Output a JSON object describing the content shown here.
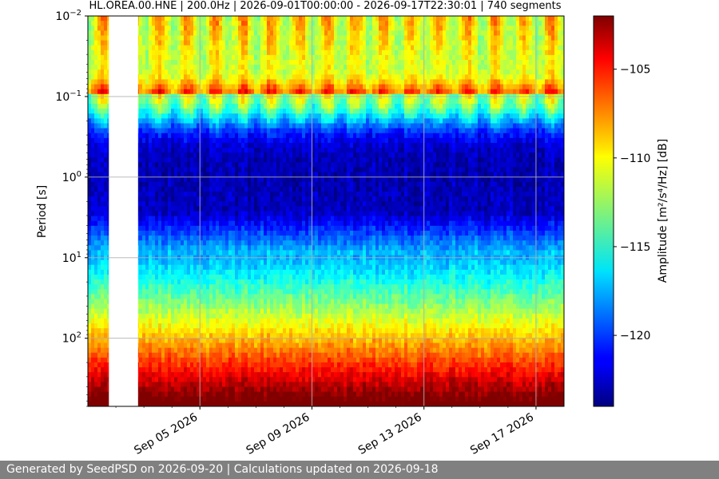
{
  "chart_data": {
    "type": "heatmap",
    "title": "HL.OREA.00.HNE | 200.0Hz | 2026-09-01T00:00:00 - 2026-09-17T22:30:01 | 740 segments",
    "ylabel": "Period [s]",
    "xlabel": "",
    "x_range": [
      "2026-09-01T00:00",
      "2026-09-18T00:00"
    ],
    "x_ticks": [
      {
        "date": "2026-09-05",
        "label": "Sep 05 2026"
      },
      {
        "date": "2026-09-09",
        "label": "Sep 09 2026"
      },
      {
        "date": "2026-09-13",
        "label": "Sep 13 2026"
      },
      {
        "date": "2026-09-17",
        "label": "Sep 17 2026"
      }
    ],
    "y_scale": "log",
    "y_inverted": true,
    "y_range": [
      0.01,
      700
    ],
    "y_ticks": [
      {
        "value": 0.01,
        "base": "10",
        "exp": "−2"
      },
      {
        "value": 0.1,
        "base": "10",
        "exp": "−1"
      },
      {
        "value": 1,
        "base": "10",
        "exp": "0"
      },
      {
        "value": 10,
        "base": "10",
        "exp": "1"
      },
      {
        "value": 100,
        "base": "10",
        "exp": "2"
      }
    ],
    "data_gap": [
      "2026-09-01T18:00",
      "2026-09-02T19:00"
    ],
    "colorbar": {
      "label": "Amplitude [m²/s⁴/Hz] [dB]",
      "range": [
        -124,
        -102
      ],
      "ticks": [
        {
          "value": -105,
          "label": "−105"
        },
        {
          "value": -110,
          "label": "−110"
        },
        {
          "value": -115,
          "label": "−115"
        },
        {
          "value": -120,
          "label": "−120"
        }
      ],
      "colormap": "jet"
    },
    "grid": true
  },
  "footer": {
    "text": "Generated by SeedPSD on 2026-09-20 | Calculations updated on 2026-09-18"
  }
}
